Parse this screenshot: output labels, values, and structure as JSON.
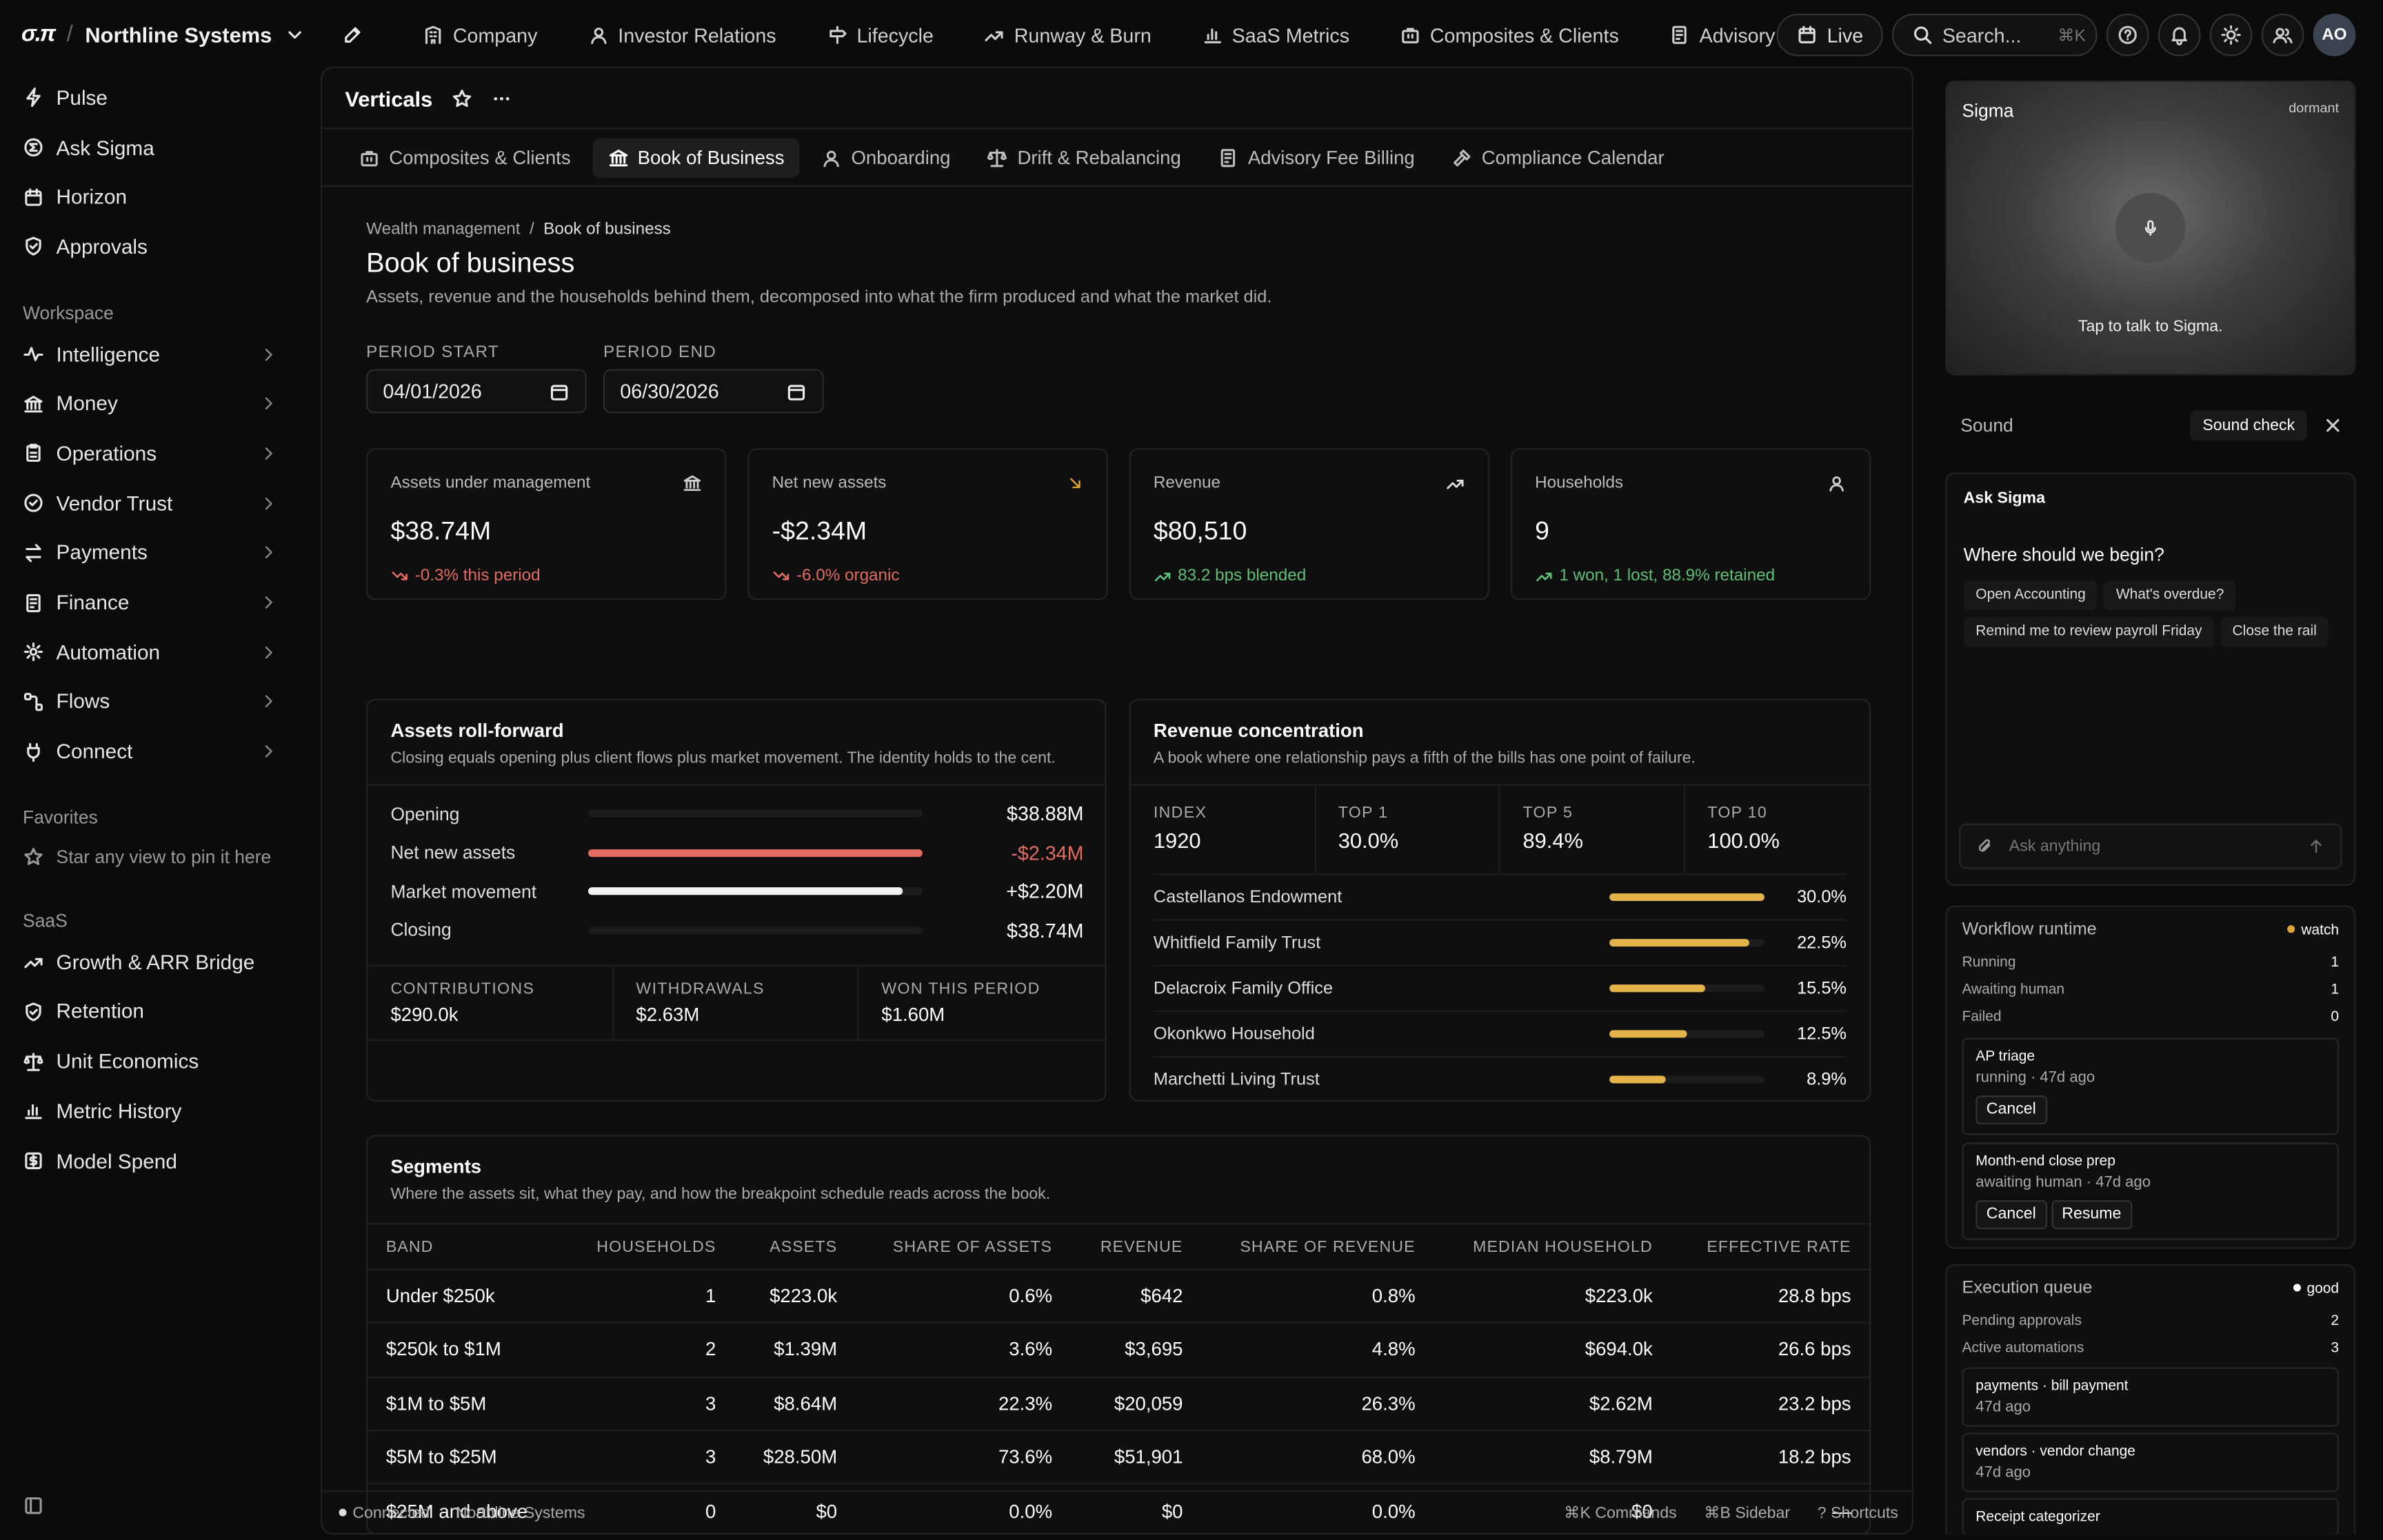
{
  "brand": {
    "logo": "σ.π",
    "org": "Northline Systems"
  },
  "nav": [
    "Company",
    "Investor Relations",
    "Lifecycle",
    "Runway & Burn",
    "SaaS Metrics",
    "Composites & Clients",
    "Advisory Fee Bi"
  ],
  "topright": {
    "live": "Live",
    "search": "Search...",
    "search_kbd": "⌘K",
    "avatar": "AO"
  },
  "sidebar": {
    "top": [
      "Pulse",
      "Ask Sigma",
      "Horizon",
      "Approvals"
    ],
    "workspace_head": "Workspace",
    "workspace": [
      "Intelligence",
      "Money",
      "Operations",
      "Vendor Trust",
      "Payments",
      "Finance",
      "Automation",
      "Flows",
      "Connect"
    ],
    "favorites_head": "Favorites",
    "favorites_empty": "Star any view to pin it here",
    "saas_head": "SaaS",
    "saas": [
      "Growth & ARR Bridge",
      "Retention",
      "Unit Economics",
      "Metric History",
      "Model Spend"
    ]
  },
  "main": {
    "title": "Verticals",
    "tabs": [
      "Composites & Clients",
      "Book of Business",
      "Onboarding",
      "Drift & Rebalancing",
      "Advisory Fee Billing",
      "Compliance Calendar"
    ],
    "crumb1": "Wealth management",
    "crumb2": "Book of business",
    "heading": "Book of business",
    "subheading": "Assets, revenue and the households behind them, decomposed into what the firm produced and what the market did.",
    "period_start_label": "PERIOD START",
    "period_start": "04/01/2026",
    "period_end_label": "PERIOD END",
    "period_end": "06/30/2026",
    "kpis": [
      {
        "label": "Assets under management",
        "value": "$38.74M",
        "sub": "-0.3% this period"
      },
      {
        "label": "Net new assets",
        "value": "-$2.34M",
        "sub": "-6.0% organic"
      },
      {
        "label": "Revenue",
        "value": "$80,510",
        "sub": "83.2 bps blended"
      },
      {
        "label": "Households",
        "value": "9",
        "sub": "1 won, 1 lost, 88.9% retained"
      }
    ],
    "rollforward": {
      "title": "Assets roll-forward",
      "subtitle": "Closing equals opening plus client flows plus market movement. The identity holds to the cent.",
      "rows": [
        {
          "label": "Opening",
          "value": "$38.88M",
          "fill": 0
        },
        {
          "label": "Net new assets",
          "value": "-$2.34M",
          "fill": 1.0
        },
        {
          "label": "Market movement",
          "value": "+$2.20M",
          "fill": 0.94
        },
        {
          "label": "Closing",
          "value": "$38.74M",
          "fill": 0
        }
      ],
      "mini": [
        {
          "label": "CONTRIBUTIONS",
          "value": "$290.0k"
        },
        {
          "label": "WITHDRAWALS",
          "value": "$2.63M"
        },
        {
          "label": "WON THIS PERIOD",
          "value": "$1.60M"
        }
      ]
    },
    "concentration": {
      "title": "Revenue concentration",
      "subtitle": "A book where one relationship pays a fifth of the bills has one point of failure.",
      "stats": [
        {
          "label": "INDEX",
          "value": "1920"
        },
        {
          "label": "TOP 1",
          "value": "30.0%"
        },
        {
          "label": "TOP 5",
          "value": "89.4%"
        },
        {
          "label": "TOP 10",
          "value": "100.0%"
        }
      ],
      "rows": [
        {
          "name": "Castellanos Endowment",
          "pct": "30.0%",
          "share": 1.0
        },
        {
          "name": "Whitfield Family Trust",
          "pct": "22.5%",
          "share": 0.9
        },
        {
          "name": "Delacroix Family Office",
          "pct": "15.5%",
          "share": 0.62
        },
        {
          "name": "Okonkwo Household",
          "pct": "12.5%",
          "share": 0.5
        },
        {
          "name": "Marchetti Living Trust",
          "pct": "8.9%",
          "share": 0.36
        }
      ]
    },
    "segments": {
      "title": "Segments",
      "subtitle": "Where the assets sit, what they pay, and how the breakpoint schedule reads across the book.",
      "columns": [
        "BAND",
        "HOUSEHOLDS",
        "ASSETS",
        "SHARE OF ASSETS",
        "REVENUE",
        "SHARE OF REVENUE",
        "MEDIAN HOUSEHOLD",
        "EFFECTIVE RATE"
      ],
      "rows": [
        [
          "Under $250k",
          "1",
          "$223.0k",
          "0.6%",
          "$642",
          "0.8%",
          "$223.0k",
          "28.8 bps"
        ],
        [
          "$250k to $1M",
          "2",
          "$1.39M",
          "3.6%",
          "$3,695",
          "4.8%",
          "$694.0k",
          "26.6 bps"
        ],
        [
          "$1M to $5M",
          "3",
          "$8.64M",
          "22.3%",
          "$20,059",
          "26.3%",
          "$2.62M",
          "23.2 bps"
        ],
        [
          "$5M to $25M",
          "3",
          "$28.50M",
          "73.6%",
          "$51,901",
          "68.0%",
          "$8.79M",
          "18.2 bps"
        ],
        [
          "$25M and above",
          "0",
          "$0",
          "0.0%",
          "$0",
          "0.0%",
          "$0",
          "—"
        ]
      ]
    },
    "status": {
      "connected": "Connected",
      "org": "Northline Systems",
      "cmd": "⌘K Commands",
      "sidebar": "⌘B Sidebar",
      "shortcuts": "? Shortcuts"
    }
  },
  "right": {
    "sigma": {
      "title": "Sigma",
      "state": "dormant",
      "hint": "Tap to talk to Sigma."
    },
    "sound": {
      "label": "Sound",
      "button": "Sound check"
    },
    "ask": {
      "title": "Ask Sigma",
      "prompt": "Where should we begin?",
      "chips": [
        "Open Accounting",
        "What's overdue?",
        "Remind me to review payroll Friday",
        "Close the rail"
      ],
      "placeholder": "Ask anything"
    },
    "workflow": {
      "title": "Workflow runtime",
      "badge": "watch",
      "rows": [
        {
          "k": "Running",
          "v": "1"
        },
        {
          "k": "Awaiting human",
          "v": "1"
        },
        {
          "k": "Failed",
          "v": "0"
        }
      ],
      "jobs": [
        {
          "t": "AP triage",
          "s": "running · 47d ago",
          "buttons": [
            "Cancel"
          ]
        },
        {
          "t": "Month-end close prep",
          "s": "awaiting human · 47d ago",
          "buttons": [
            "Cancel",
            "Resume"
          ]
        }
      ]
    },
    "queue": {
      "title": "Execution queue",
      "badge": "good",
      "rows": [
        {
          "k": "Pending approvals",
          "v": "2"
        },
        {
          "k": "Active automations",
          "v": "3"
        }
      ],
      "items": [
        {
          "t": "payments · bill payment",
          "s": "47d ago"
        },
        {
          "t": "vendors · vendor change",
          "s": "47d ago"
        },
        {
          "t": "Receipt categorizer",
          "s": ""
        }
      ]
    }
  },
  "colors": {
    "red": "#e26b62",
    "green": "#5fbf76",
    "amber": "#e0a535",
    "bar": "#e4b44a"
  }
}
